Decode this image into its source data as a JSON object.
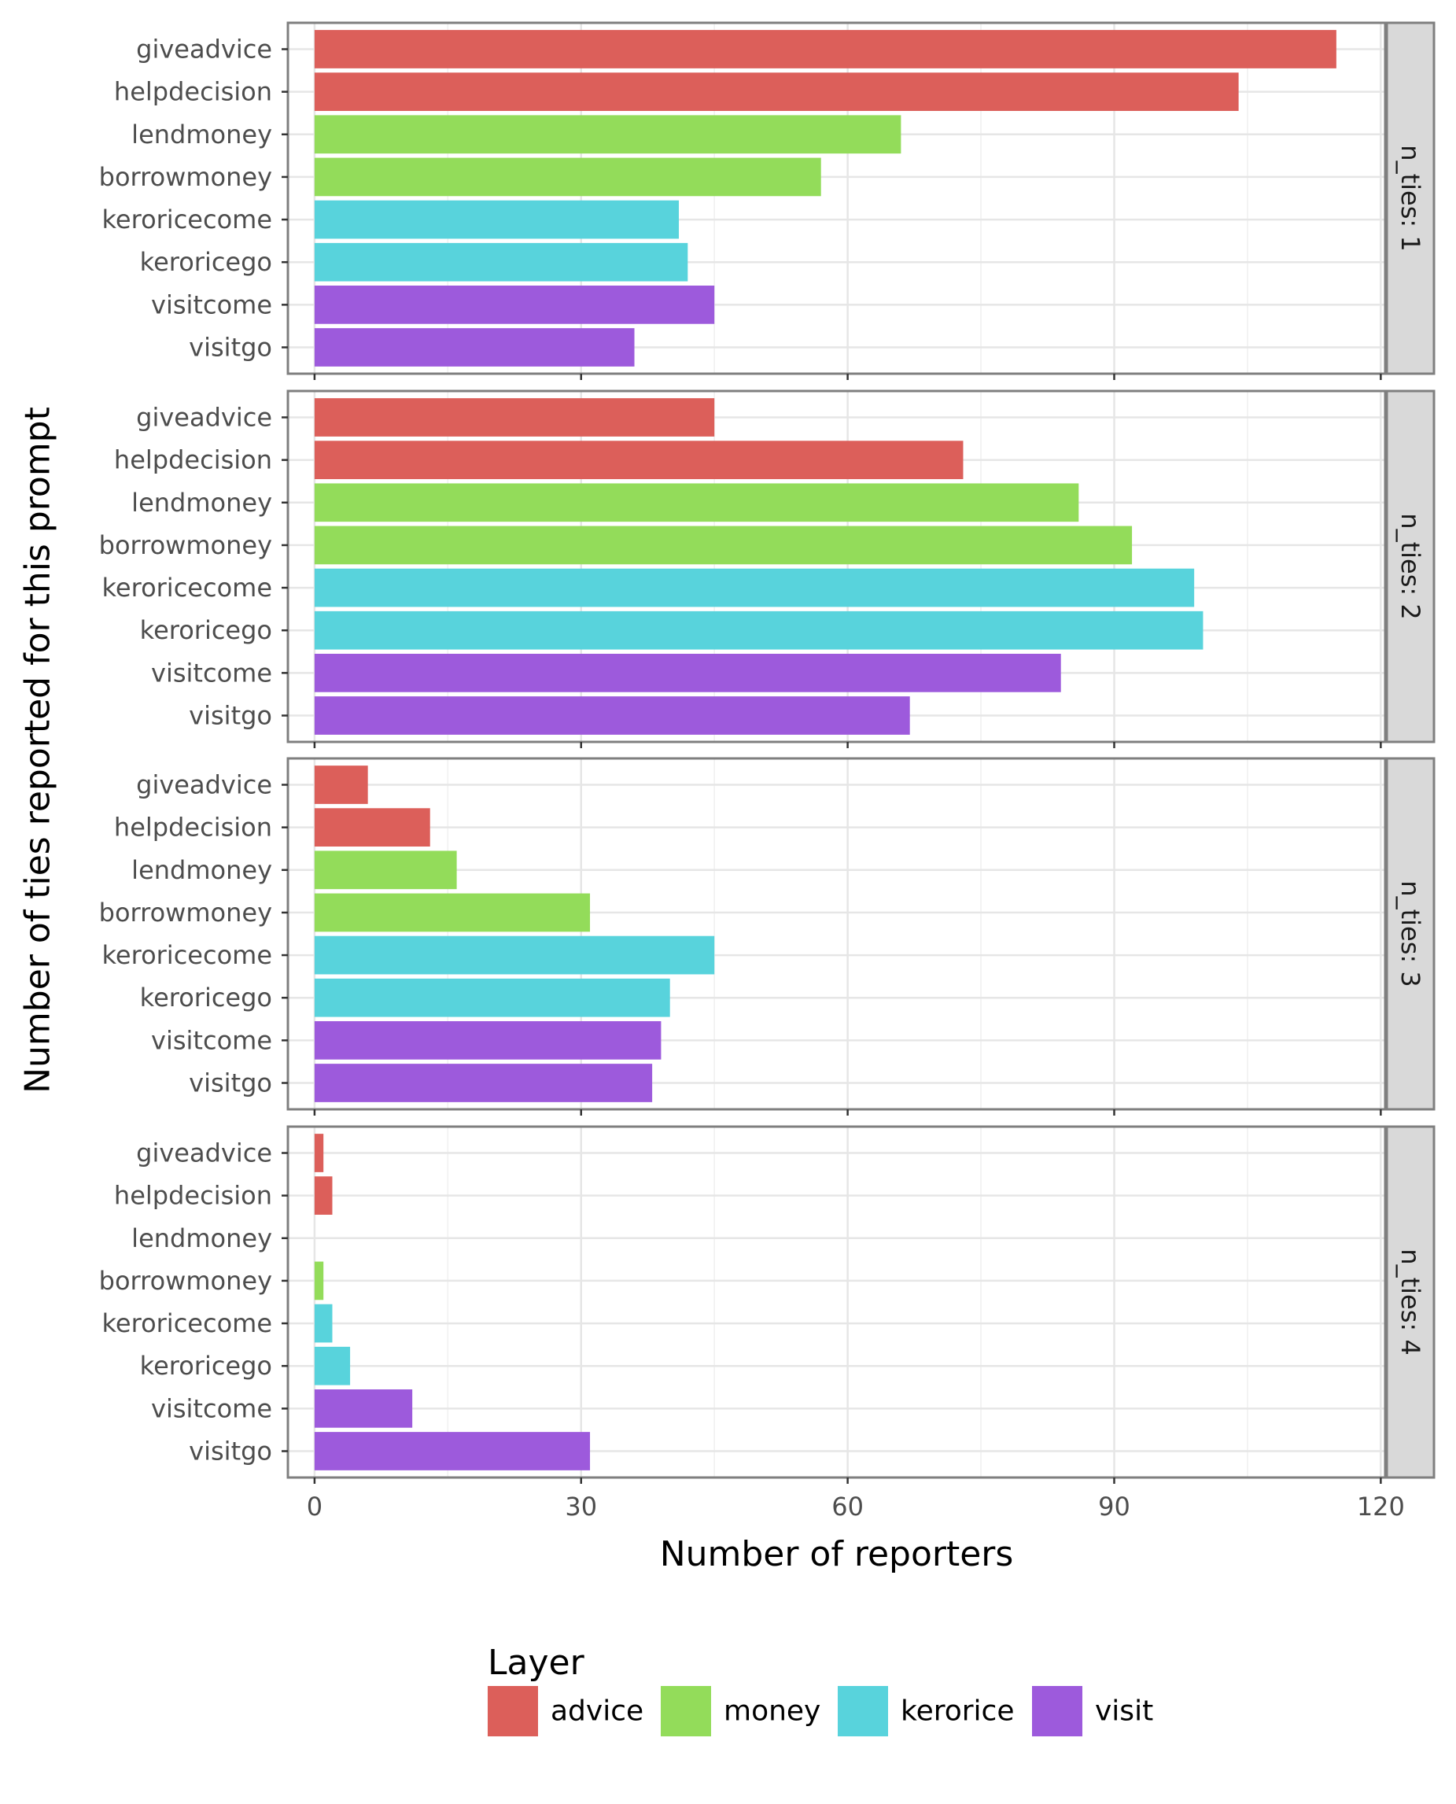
{
  "chart_data": {
    "type": "bar",
    "orientation": "horizontal",
    "xlabel": "Number of reporters",
    "ylabel": "Number of ties reported for this prompt",
    "xlim": [
      -3,
      120.5
    ],
    "xticks": [
      0,
      30,
      60,
      90,
      120
    ],
    "grid": true,
    "categories": [
      "giveadvice",
      "helpdecision",
      "lendmoney",
      "borrowmoney",
      "keroricecome",
      "keroricego",
      "visitcome",
      "visitgo"
    ],
    "category_layer": [
      "advice",
      "advice",
      "money",
      "money",
      "kerorice",
      "kerorice",
      "visit",
      "visit"
    ],
    "facets": [
      {
        "label": "n_ties: 1",
        "values": [
          115,
          104,
          66,
          57,
          41,
          42,
          45,
          36
        ]
      },
      {
        "label": "n_ties: 2",
        "values": [
          45,
          73,
          86,
          92,
          99,
          100,
          84,
          67
        ]
      },
      {
        "label": "n_ties: 3",
        "values": [
          6,
          13,
          16,
          31,
          45,
          40,
          39,
          38
        ]
      },
      {
        "label": "n_ties: 4",
        "values": [
          1,
          2,
          0,
          1,
          2,
          4,
          11,
          31
        ]
      }
    ],
    "legend": {
      "title": "Layer",
      "position": "bottom",
      "entries": [
        {
          "name": "advice",
          "color": "#DC5F5A"
        },
        {
          "name": "money",
          "color": "#93DC5A"
        },
        {
          "name": "kerorice",
          "color": "#58D3DC"
        },
        {
          "name": "visit",
          "color": "#9D5ADC"
        }
      ]
    }
  }
}
